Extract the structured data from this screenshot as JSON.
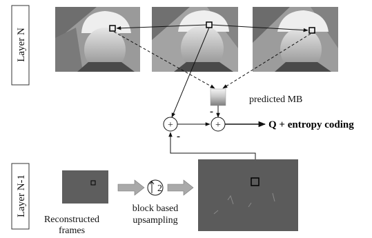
{
  "layers": {
    "top_label": "Layer N",
    "bottom_label": "Layer N-1"
  },
  "labels": {
    "predicted_mb": "predicted MB",
    "output": "Q + entropy coding",
    "reconstructed_line1": "Reconstructed",
    "reconstructed_line2": "frames",
    "upsampling_line1": "block based",
    "upsampling_line2": "upsampling",
    "upsample_factor": "2",
    "plus": "+",
    "minus": "-"
  },
  "colors": {
    "residual_frame": "#5b5b5b",
    "arrow_fill": "#a9a9a9",
    "line": "#111111"
  }
}
